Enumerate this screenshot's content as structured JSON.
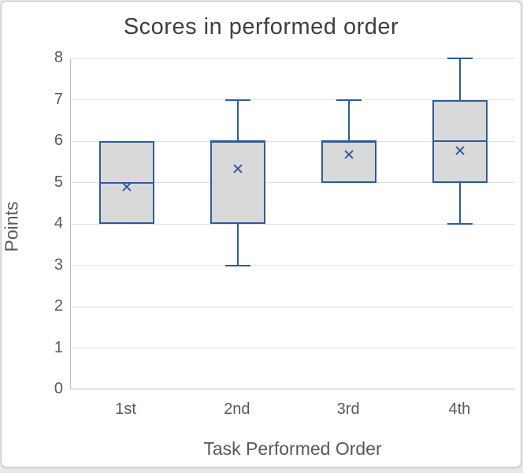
{
  "chart_data": {
    "type": "boxplot",
    "title": "Scores in performed order",
    "xlabel": "Task Performed Order",
    "ylabel": "Points",
    "ylim": [
      0,
      8
    ],
    "yticks": [
      0,
      1,
      2,
      3,
      4,
      5,
      6,
      7,
      8
    ],
    "grid": "horizontal",
    "legend": "none",
    "categories": [
      "1st",
      "2nd",
      "3rd",
      "4th"
    ],
    "boxes": [
      {
        "category": "1st",
        "whisker_min": 4,
        "q1": 4,
        "median": 5,
        "q3": 6,
        "whisker_max": 6,
        "mean": 4.89
      },
      {
        "category": "2nd",
        "whisker_min": 3,
        "q1": 4,
        "median": 6,
        "q3": 6,
        "whisker_max": 7,
        "mean": 5.33
      },
      {
        "category": "3rd",
        "whisker_min": 5,
        "q1": 5,
        "median": 6,
        "q3": 6,
        "whisker_max": 7,
        "mean": 5.67
      },
      {
        "category": "4th",
        "whisker_min": 4,
        "q1": 5,
        "median": 6,
        "q3": 7,
        "whisker_max": 8,
        "mean": 5.78
      }
    ],
    "colors": {
      "box_fill": "#d9d9d9",
      "box_border": "#2e5b9f",
      "mean_marker": "#2e5b9f",
      "gridline": "#e2e2e2",
      "axis_line": "#bfbfbf",
      "title_color": "#404040",
      "label_color": "#595959",
      "card_background": "#ffffff",
      "card_border": "#c6c6c6"
    }
  }
}
